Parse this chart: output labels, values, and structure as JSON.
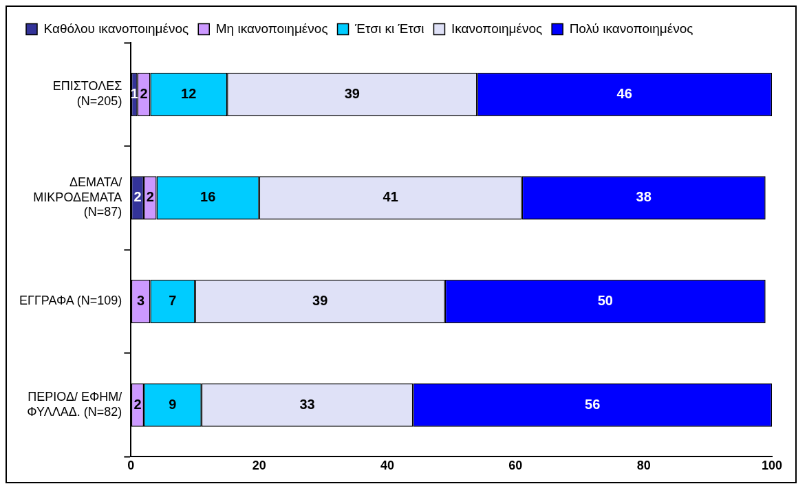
{
  "chart_data": {
    "type": "bar",
    "orientation": "horizontal",
    "stacked": true,
    "categories": [
      "ΕΠΙΣΤΟΛΕΣ (N=205)",
      "ΔΕΜΑΤΑ/ ΜΙΚΡΟΔΕΜΑΤΑ (N=87)",
      "ΕΓΓΡΑΦΑ (N=109)",
      "ΠΕΡΙΟΔ/ ΕΦΗΜ/ ΦΥΛΛΑΔ. (N=82)"
    ],
    "series": [
      {
        "name": "Καθόλου ικανοποιημένος",
        "color": "#333399",
        "values": [
          1,
          2,
          0,
          0
        ],
        "value_labels": [
          "1",
          "2",
          null,
          null
        ]
      },
      {
        "name": "Μη ικανοποιημένος",
        "color": "#cc99ff",
        "values": [
          2,
          2,
          3,
          2
        ],
        "value_labels": [
          "2",
          "2",
          "3",
          "2"
        ]
      },
      {
        "name": "Έτσι κι Έτσι",
        "color": "#00ccff",
        "values": [
          12,
          16,
          7,
          9
        ],
        "value_labels": [
          "12",
          "16",
          "7",
          "9"
        ]
      },
      {
        "name": "Ικανοποιημένος",
        "color": "#dfe1f7",
        "values": [
          39,
          41,
          39,
          33
        ],
        "value_labels": [
          "39",
          "41",
          "39",
          "33"
        ]
      },
      {
        "name": "Πολύ ικανοποιημένος",
        "color": "#0000ff",
        "values": [
          46,
          38,
          50,
          56
        ],
        "value_labels": [
          "46",
          "38",
          "50",
          "56"
        ]
      }
    ],
    "xlim": [
      0,
      100
    ],
    "xticks": [
      0,
      20,
      40,
      60,
      80,
      100
    ],
    "grid": false,
    "legend": "top"
  }
}
